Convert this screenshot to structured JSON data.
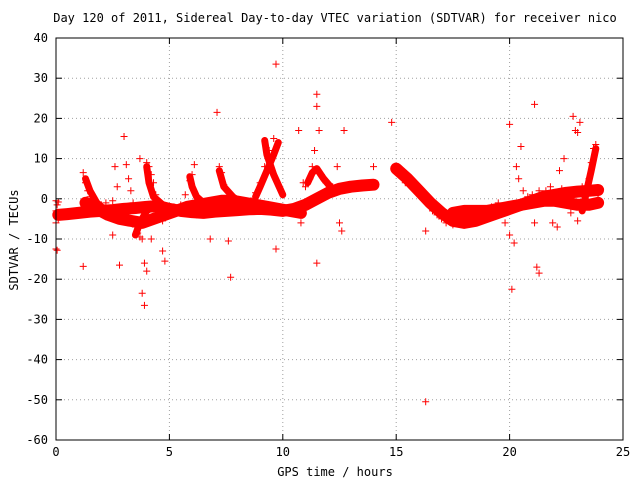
{
  "chart_data": {
    "type": "scatter",
    "title": "Day 120 of 2011, Sidereal Day-to-day VTEC variation (SDTVAR) for receiver nico",
    "xlabel": "GPS time / hours",
    "ylabel": "SDTVAR / TECUs",
    "xlim": [
      0,
      25
    ],
    "ylim": [
      -60,
      40
    ],
    "xticks": [
      0,
      5,
      10,
      15,
      20,
      25
    ],
    "yticks": [
      -60,
      -50,
      -40,
      -30,
      -20,
      -10,
      0,
      10,
      20,
      30,
      40
    ],
    "grid": true,
    "marker": "+",
    "color": "#ff0000",
    "series": [
      {
        "values": [
          {
            "x": 0.0,
            "y": -0.5
          },
          {
            "x": 0.0,
            "y": -3.0
          },
          {
            "x": 0.0,
            "y": -4.0
          },
          {
            "x": 0.0,
            "y": -6.0
          },
          {
            "x": 0.0,
            "y": -12.5
          },
          {
            "x": 0.05,
            "y": -12.8
          },
          {
            "x": 0.05,
            "y": -1.5
          },
          {
            "x": 0.1,
            "y": -0.8
          },
          {
            "x": 0.1,
            "y": -5.0
          },
          {
            "x": 0.2,
            "y": -4.2
          },
          {
            "x": 0.3,
            "y": -3.8
          },
          {
            "x": 0.5,
            "y": -4.0
          },
          {
            "x": 0.7,
            "y": -3.5
          },
          {
            "x": 0.9,
            "y": -3.0
          },
          {
            "x": 1.1,
            "y": -2.5
          },
          {
            "x": 1.2,
            "y": -16.8
          },
          {
            "x": 1.2,
            "y": 6.5
          },
          {
            "x": 1.3,
            "y": 4.0
          },
          {
            "x": 1.4,
            "y": 2.0
          },
          {
            "x": 1.5,
            "y": 0.5
          },
          {
            "x": 1.6,
            "y": -1.0
          },
          {
            "x": 1.8,
            "y": -2.0
          },
          {
            "x": 2.0,
            "y": -1.5
          },
          {
            "x": 2.2,
            "y": -1.0
          },
          {
            "x": 2.5,
            "y": -0.5
          },
          {
            "x": 2.5,
            "y": -9.0
          },
          {
            "x": 2.6,
            "y": 8.0
          },
          {
            "x": 2.7,
            "y": 3.0
          },
          {
            "x": 2.8,
            "y": -16.5
          },
          {
            "x": 2.8,
            "y": -4.5
          },
          {
            "x": 3.0,
            "y": 15.5
          },
          {
            "x": 3.1,
            "y": 8.5
          },
          {
            "x": 3.2,
            "y": 5.0
          },
          {
            "x": 3.3,
            "y": 2.0
          },
          {
            "x": 3.4,
            "y": -1.0
          },
          {
            "x": 3.5,
            "y": -7.0
          },
          {
            "x": 3.6,
            "y": -8.5
          },
          {
            "x": 3.7,
            "y": -9.5
          },
          {
            "x": 3.7,
            "y": 10.0
          },
          {
            "x": 3.8,
            "y": -23.5
          },
          {
            "x": 3.8,
            "y": -10.0
          },
          {
            "x": 3.9,
            "y": -26.5
          },
          {
            "x": 3.9,
            "y": -16.0
          },
          {
            "x": 4.0,
            "y": -18.0
          },
          {
            "x": 4.0,
            "y": 9.0
          },
          {
            "x": 4.1,
            "y": 8.0
          },
          {
            "x": 4.2,
            "y": 6.0
          },
          {
            "x": 4.2,
            "y": -10.0
          },
          {
            "x": 4.3,
            "y": 4.0
          },
          {
            "x": 4.4,
            "y": 1.0
          },
          {
            "x": 4.5,
            "y": -4.0
          },
          {
            "x": 4.6,
            "y": -5.0
          },
          {
            "x": 4.7,
            "y": -5.5
          },
          {
            "x": 4.7,
            "y": -13.0
          },
          {
            "x": 4.8,
            "y": -15.5
          },
          {
            "x": 4.9,
            "y": -3.0
          },
          {
            "x": 5.2,
            "y": -2.0
          },
          {
            "x": 5.5,
            "y": -1.5
          },
          {
            "x": 5.7,
            "y": 1.0
          },
          {
            "x": 5.9,
            "y": 4.5
          },
          {
            "x": 6.0,
            "y": 6.0
          },
          {
            "x": 6.1,
            "y": 8.5
          },
          {
            "x": 6.2,
            "y": -4.0
          },
          {
            "x": 6.5,
            "y": -3.0
          },
          {
            "x": 6.8,
            "y": -10.0
          },
          {
            "x": 7.0,
            "y": -1.0
          },
          {
            "x": 7.1,
            "y": 21.5
          },
          {
            "x": 7.2,
            "y": 8.0
          },
          {
            "x": 7.3,
            "y": 6.5
          },
          {
            "x": 7.4,
            "y": 3.5
          },
          {
            "x": 7.6,
            "y": -10.5
          },
          {
            "x": 7.7,
            "y": -19.5
          },
          {
            "x": 7.8,
            "y": -2.0
          },
          {
            "x": 8.0,
            "y": -1.5
          },
          {
            "x": 8.3,
            "y": -1.0
          },
          {
            "x": 8.6,
            "y": -0.5
          },
          {
            "x": 8.8,
            "y": 1.5
          },
          {
            "x": 9.0,
            "y": 4.0
          },
          {
            "x": 9.2,
            "y": 8.0
          },
          {
            "x": 9.4,
            "y": 12.0
          },
          {
            "x": 9.6,
            "y": 15.0
          },
          {
            "x": 9.7,
            "y": 33.5
          },
          {
            "x": 9.7,
            "y": -12.5
          },
          {
            "x": 9.9,
            "y": -3.0
          },
          {
            "x": 10.2,
            "y": -3.5
          },
          {
            "x": 10.5,
            "y": -3.0
          },
          {
            "x": 10.7,
            "y": 17.0
          },
          {
            "x": 10.8,
            "y": -6.0
          },
          {
            "x": 10.9,
            "y": 4.0
          },
          {
            "x": 11.0,
            "y": 3.0
          },
          {
            "x": 11.2,
            "y": 5.0
          },
          {
            "x": 11.3,
            "y": 8.0
          },
          {
            "x": 11.4,
            "y": 12.0
          },
          {
            "x": 11.5,
            "y": 26.0
          },
          {
            "x": 11.5,
            "y": 23.0
          },
          {
            "x": 11.6,
            "y": 17.0
          },
          {
            "x": 11.5,
            "y": -16.0
          },
          {
            "x": 11.7,
            "y": 6.0
          },
          {
            "x": 11.9,
            "y": 4.0
          },
          {
            "x": 12.2,
            "y": 3.0
          },
          {
            "x": 12.4,
            "y": 8.0
          },
          {
            "x": 12.5,
            "y": -6.0
          },
          {
            "x": 12.6,
            "y": -8.0
          },
          {
            "x": 12.7,
            "y": 17.0
          },
          {
            "x": 12.9,
            "y": 3.5
          },
          {
            "x": 13.2,
            "y": 3.5
          },
          {
            "x": 13.5,
            "y": 3.5
          },
          {
            "x": 13.8,
            "y": 3.5
          },
          {
            "x": 14.0,
            "y": 4.0
          },
          {
            "x": 14.0,
            "y": 8.0
          },
          {
            "x": 14.8,
            "y": 19.0
          },
          {
            "x": 15.0,
            "y": 8.0
          },
          {
            "x": 15.2,
            "y": 7.5
          },
          {
            "x": 15.4,
            "y": 4.0
          },
          {
            "x": 15.6,
            "y": 5.0
          },
          {
            "x": 15.8,
            "y": 3.0
          },
          {
            "x": 16.0,
            "y": 1.5
          },
          {
            "x": 16.2,
            "y": 0.0
          },
          {
            "x": 16.4,
            "y": -1.5
          },
          {
            "x": 16.3,
            "y": -8.0
          },
          {
            "x": 16.3,
            "y": -50.5
          },
          {
            "x": 16.6,
            "y": -3.0
          },
          {
            "x": 16.8,
            "y": -4.0
          },
          {
            "x": 17.0,
            "y": -5.0
          },
          {
            "x": 17.2,
            "y": -6.0
          },
          {
            "x": 17.5,
            "y": -6.5
          },
          {
            "x": 17.8,
            "y": -5.5
          },
          {
            "x": 18.0,
            "y": -4.5
          },
          {
            "x": 18.3,
            "y": -3.5
          },
          {
            "x": 18.6,
            "y": -3.0
          },
          {
            "x": 18.9,
            "y": -2.5
          },
          {
            "x": 19.2,
            "y": -2.0
          },
          {
            "x": 19.5,
            "y": -1.0
          },
          {
            "x": 19.8,
            "y": -6.0
          },
          {
            "x": 20.0,
            "y": -9.0
          },
          {
            "x": 20.0,
            "y": 18.5
          },
          {
            "x": 20.1,
            "y": -22.5
          },
          {
            "x": 20.2,
            "y": -11.0
          },
          {
            "x": 20.3,
            "y": 8.0
          },
          {
            "x": 20.5,
            "y": 13.0
          },
          {
            "x": 20.4,
            "y": 5.0
          },
          {
            "x": 20.6,
            "y": 2.0
          },
          {
            "x": 20.8,
            "y": 0.5
          },
          {
            "x": 21.0,
            "y": 1.0
          },
          {
            "x": 21.1,
            "y": 23.5
          },
          {
            "x": 21.1,
            "y": -6.0
          },
          {
            "x": 21.2,
            "y": -17.0
          },
          {
            "x": 21.3,
            "y": -18.5
          },
          {
            "x": 21.3,
            "y": 2.0
          },
          {
            "x": 21.6,
            "y": 2.0
          },
          {
            "x": 21.8,
            "y": 3.0
          },
          {
            "x": 21.9,
            "y": -6.0
          },
          {
            "x": 22.0,
            "y": 1.5
          },
          {
            "x": 22.1,
            "y": -7.0
          },
          {
            "x": 22.2,
            "y": 7.0
          },
          {
            "x": 22.3,
            "y": 2.5
          },
          {
            "x": 22.4,
            "y": 10.0
          },
          {
            "x": 22.5,
            "y": -1.0
          },
          {
            "x": 22.7,
            "y": -3.5
          },
          {
            "x": 22.8,
            "y": 20.5
          },
          {
            "x": 22.9,
            "y": 17.0
          },
          {
            "x": 23.0,
            "y": 16.5
          },
          {
            "x": 23.0,
            "y": -5.5
          },
          {
            "x": 23.1,
            "y": 19.0
          },
          {
            "x": 23.2,
            "y": 3.0
          },
          {
            "x": 23.3,
            "y": -1.5
          },
          {
            "x": 23.5,
            "y": 5.0
          },
          {
            "x": 23.6,
            "y": 9.0
          },
          {
            "x": 23.7,
            "y": 12.5
          },
          {
            "x": 23.8,
            "y": 13.5
          },
          {
            "x": 23.9,
            "y": 0.0
          },
          {
            "x": 23.9,
            "y": 2.0
          }
        ]
      }
    ],
    "bands": [
      {
        "x": [
          0.1,
          0.5,
          1.0,
          1.5,
          2.0,
          2.5,
          3.0,
          3.5,
          4.0,
          4.5,
          5.0,
          5.5,
          6.0,
          6.5,
          7.0,
          7.5,
          8.0,
          8.5,
          9.0,
          9.5,
          10.0,
          10.5,
          11.0,
          11.5,
          12.0,
          12.5,
          13.0,
          13.5,
          14.0
        ],
        "y": [
          -4.0,
          -3.8,
          -3.5,
          -3.2,
          -3.0,
          -2.8,
          -2.5,
          -2.3,
          -2.0,
          -1.8,
          -2.5,
          -3.0,
          -3.3,
          -3.5,
          -3.2,
          -3.0,
          -2.8,
          -2.6,
          -2.5,
          -2.7,
          -3.0,
          -2.5,
          -1.5,
          0.0,
          1.5,
          2.5,
          3.0,
          3.3,
          3.5
        ]
      },
      {
        "x": [
          1.3,
          1.8,
          2.3,
          2.8,
          3.3,
          3.8,
          4.3,
          4.8,
          5.3,
          5.8,
          6.3,
          6.8,
          7.3,
          7.8,
          8.3,
          8.8,
          9.3,
          9.8,
          10.3,
          10.8
        ],
        "y": [
          -1.0,
          -2.5,
          -4.0,
          -5.0,
          -5.5,
          -6.0,
          -5.0,
          -4.0,
          -3.0,
          -2.0,
          -1.5,
          -1.0,
          -0.5,
          -0.5,
          -1.0,
          -1.5,
          -2.0,
          -2.5,
          -3.0,
          -3.5
        ]
      },
      {
        "x": [
          15.0,
          15.5,
          16.0,
          16.5,
          17.0,
          17.5,
          18.0,
          18.5,
          19.0,
          19.5,
          20.0,
          20.5,
          21.0,
          21.5,
          22.0,
          22.5,
          23.0,
          23.5,
          23.9
        ],
        "y": [
          7.5,
          5.0,
          2.0,
          -1.0,
          -3.5,
          -5.5,
          -6.0,
          -5.5,
          -4.5,
          -3.5,
          -2.5,
          -1.5,
          -0.5,
          0.5,
          1.0,
          1.5,
          1.8,
          2.0,
          2.2
        ]
      },
      {
        "x": [
          17.5,
          18.0,
          18.5,
          19.0,
          19.5,
          20.0,
          20.5,
          21.0,
          21.5,
          22.0,
          22.5,
          23.0,
          23.5,
          23.9
        ],
        "y": [
          -3.5,
          -3.0,
          -3.0,
          -3.0,
          -2.5,
          -2.0,
          -1.5,
          -1.0,
          -0.5,
          -0.5,
          -1.0,
          -1.5,
          -1.5,
          -1.0
        ]
      }
    ],
    "arcs": [
      {
        "x": [
          1.3,
          1.5,
          1.8,
          2.2
        ],
        "y": [
          5.0,
          2.0,
          -1.0,
          -3.0
        ]
      },
      {
        "x": [
          3.5,
          3.7,
          4.0,
          4.4
        ],
        "y": [
          -9.0,
          -6.0,
          -3.0,
          -1.5
        ]
      },
      {
        "x": [
          4.0,
          4.1,
          4.3,
          4.8,
          5.3
        ],
        "y": [
          8.0,
          4.0,
          0.5,
          -2.0,
          -3.0
        ]
      },
      {
        "x": [
          5.9,
          6.0,
          6.2,
          6.6,
          7.0
        ],
        "y": [
          5.5,
          3.0,
          0.5,
          -1.5,
          -2.5
        ]
      },
      {
        "x": [
          7.2,
          7.4,
          7.8,
          8.3
        ],
        "y": [
          7.0,
          3.0,
          0.5,
          -1.5
        ]
      },
      {
        "x": [
          8.8,
          9.0,
          9.3,
          9.6,
          9.8
        ],
        "y": [
          0.5,
          3.0,
          7.0,
          11.0,
          14.0
        ]
      },
      {
        "x": [
          9.2,
          9.3,
          9.6,
          10.0
        ],
        "y": [
          14.5,
          11.0,
          6.0,
          1.0
        ]
      },
      {
        "x": [
          11.1,
          11.3,
          11.5,
          11.8,
          12.1
        ],
        "y": [
          4.0,
          6.5,
          7.5,
          5.0,
          3.0
        ]
      },
      {
        "x": [
          23.2,
          23.4,
          23.6,
          23.8
        ],
        "y": [
          -3.0,
          2.0,
          7.0,
          12.5
        ]
      }
    ]
  }
}
